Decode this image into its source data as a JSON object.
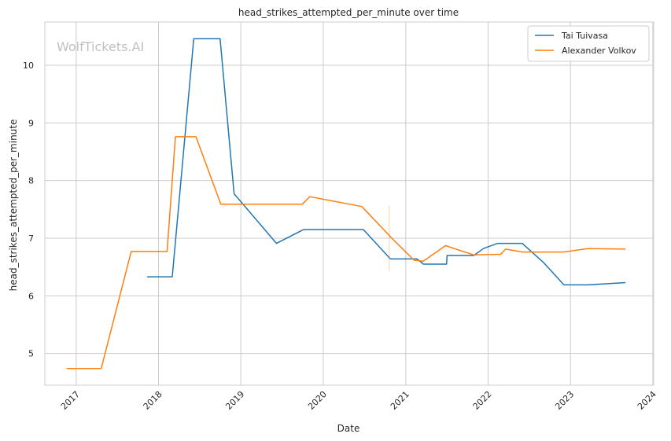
{
  "chart_data": {
    "type": "line",
    "title": "head_strikes_attempted_per_minute over time",
    "xlabel": "Date",
    "ylabel": "head_strikes_attempted_per_minute",
    "watermark": "WolfTickets.AI",
    "xlim": [
      "2016-08-15",
      "2024-01-05"
    ],
    "ylim": [
      4.45,
      10.75
    ],
    "x_ticks": [
      "2017",
      "2018",
      "2019",
      "2020",
      "2021",
      "2022",
      "2023",
      "2024"
    ],
    "y_ticks": [
      "5",
      "6",
      "7",
      "8",
      "9",
      "10"
    ],
    "grid": true,
    "legend_position": "top-right",
    "series": [
      {
        "name": "Tai Tuivasa",
        "color": "#1f77b4",
        "points": [
          [
            "2017-11-11",
            6.33
          ],
          [
            "2018-03-03",
            6.33
          ],
          [
            "2018-06-06",
            10.46
          ],
          [
            "2018-10-01",
            10.46
          ],
          [
            "2018-12-02",
            7.77
          ],
          [
            "2019-06-08",
            6.91
          ],
          [
            "2019-10-06",
            7.15
          ],
          [
            "2020-06-27",
            7.15
          ],
          [
            "2020-10-25",
            6.64
          ],
          [
            "2021-02-20",
            6.64
          ],
          [
            "2021-03-20",
            6.55
          ],
          [
            "2021-07-01",
            6.55
          ],
          [
            "2021-07-03",
            6.7
          ],
          [
            "2021-10-30",
            6.7
          ],
          [
            "2021-12-11",
            6.82
          ],
          [
            "2022-02-12",
            6.91
          ],
          [
            "2022-06-01",
            6.91
          ],
          [
            "2022-09-03",
            6.58
          ],
          [
            "2022-12-03",
            6.19
          ],
          [
            "2023-03-18",
            6.19
          ],
          [
            "2023-09-02",
            6.23
          ]
        ]
      },
      {
        "name": "Alexander Volkov",
        "color": "#ff7f0e",
        "points": [
          [
            "2016-11-19",
            4.74
          ],
          [
            "2017-04-22",
            4.74
          ],
          [
            "2017-09-02",
            6.77
          ],
          [
            "2018-02-08",
            6.77
          ],
          [
            "2018-03-17",
            8.76
          ],
          [
            "2018-06-16",
            8.76
          ],
          [
            "2018-10-04",
            7.59
          ],
          [
            "2019-10-01",
            7.59
          ],
          [
            "2019-11-02",
            7.72
          ],
          [
            "2020-06-20",
            7.55
          ],
          [
            "2020-10-31",
            7.0
          ],
          [
            "2021-02-06",
            6.62
          ],
          [
            "2021-03-20",
            6.6
          ],
          [
            "2021-06-26",
            6.87
          ],
          [
            "2021-10-30",
            6.71
          ],
          [
            "2022-02-26",
            6.72
          ],
          [
            "2022-03-19",
            6.81
          ],
          [
            "2022-06-04",
            6.76
          ],
          [
            "2022-12-01",
            6.76
          ],
          [
            "2023-03-18",
            6.82
          ],
          [
            "2023-09-02",
            6.81
          ]
        ]
      }
    ]
  }
}
